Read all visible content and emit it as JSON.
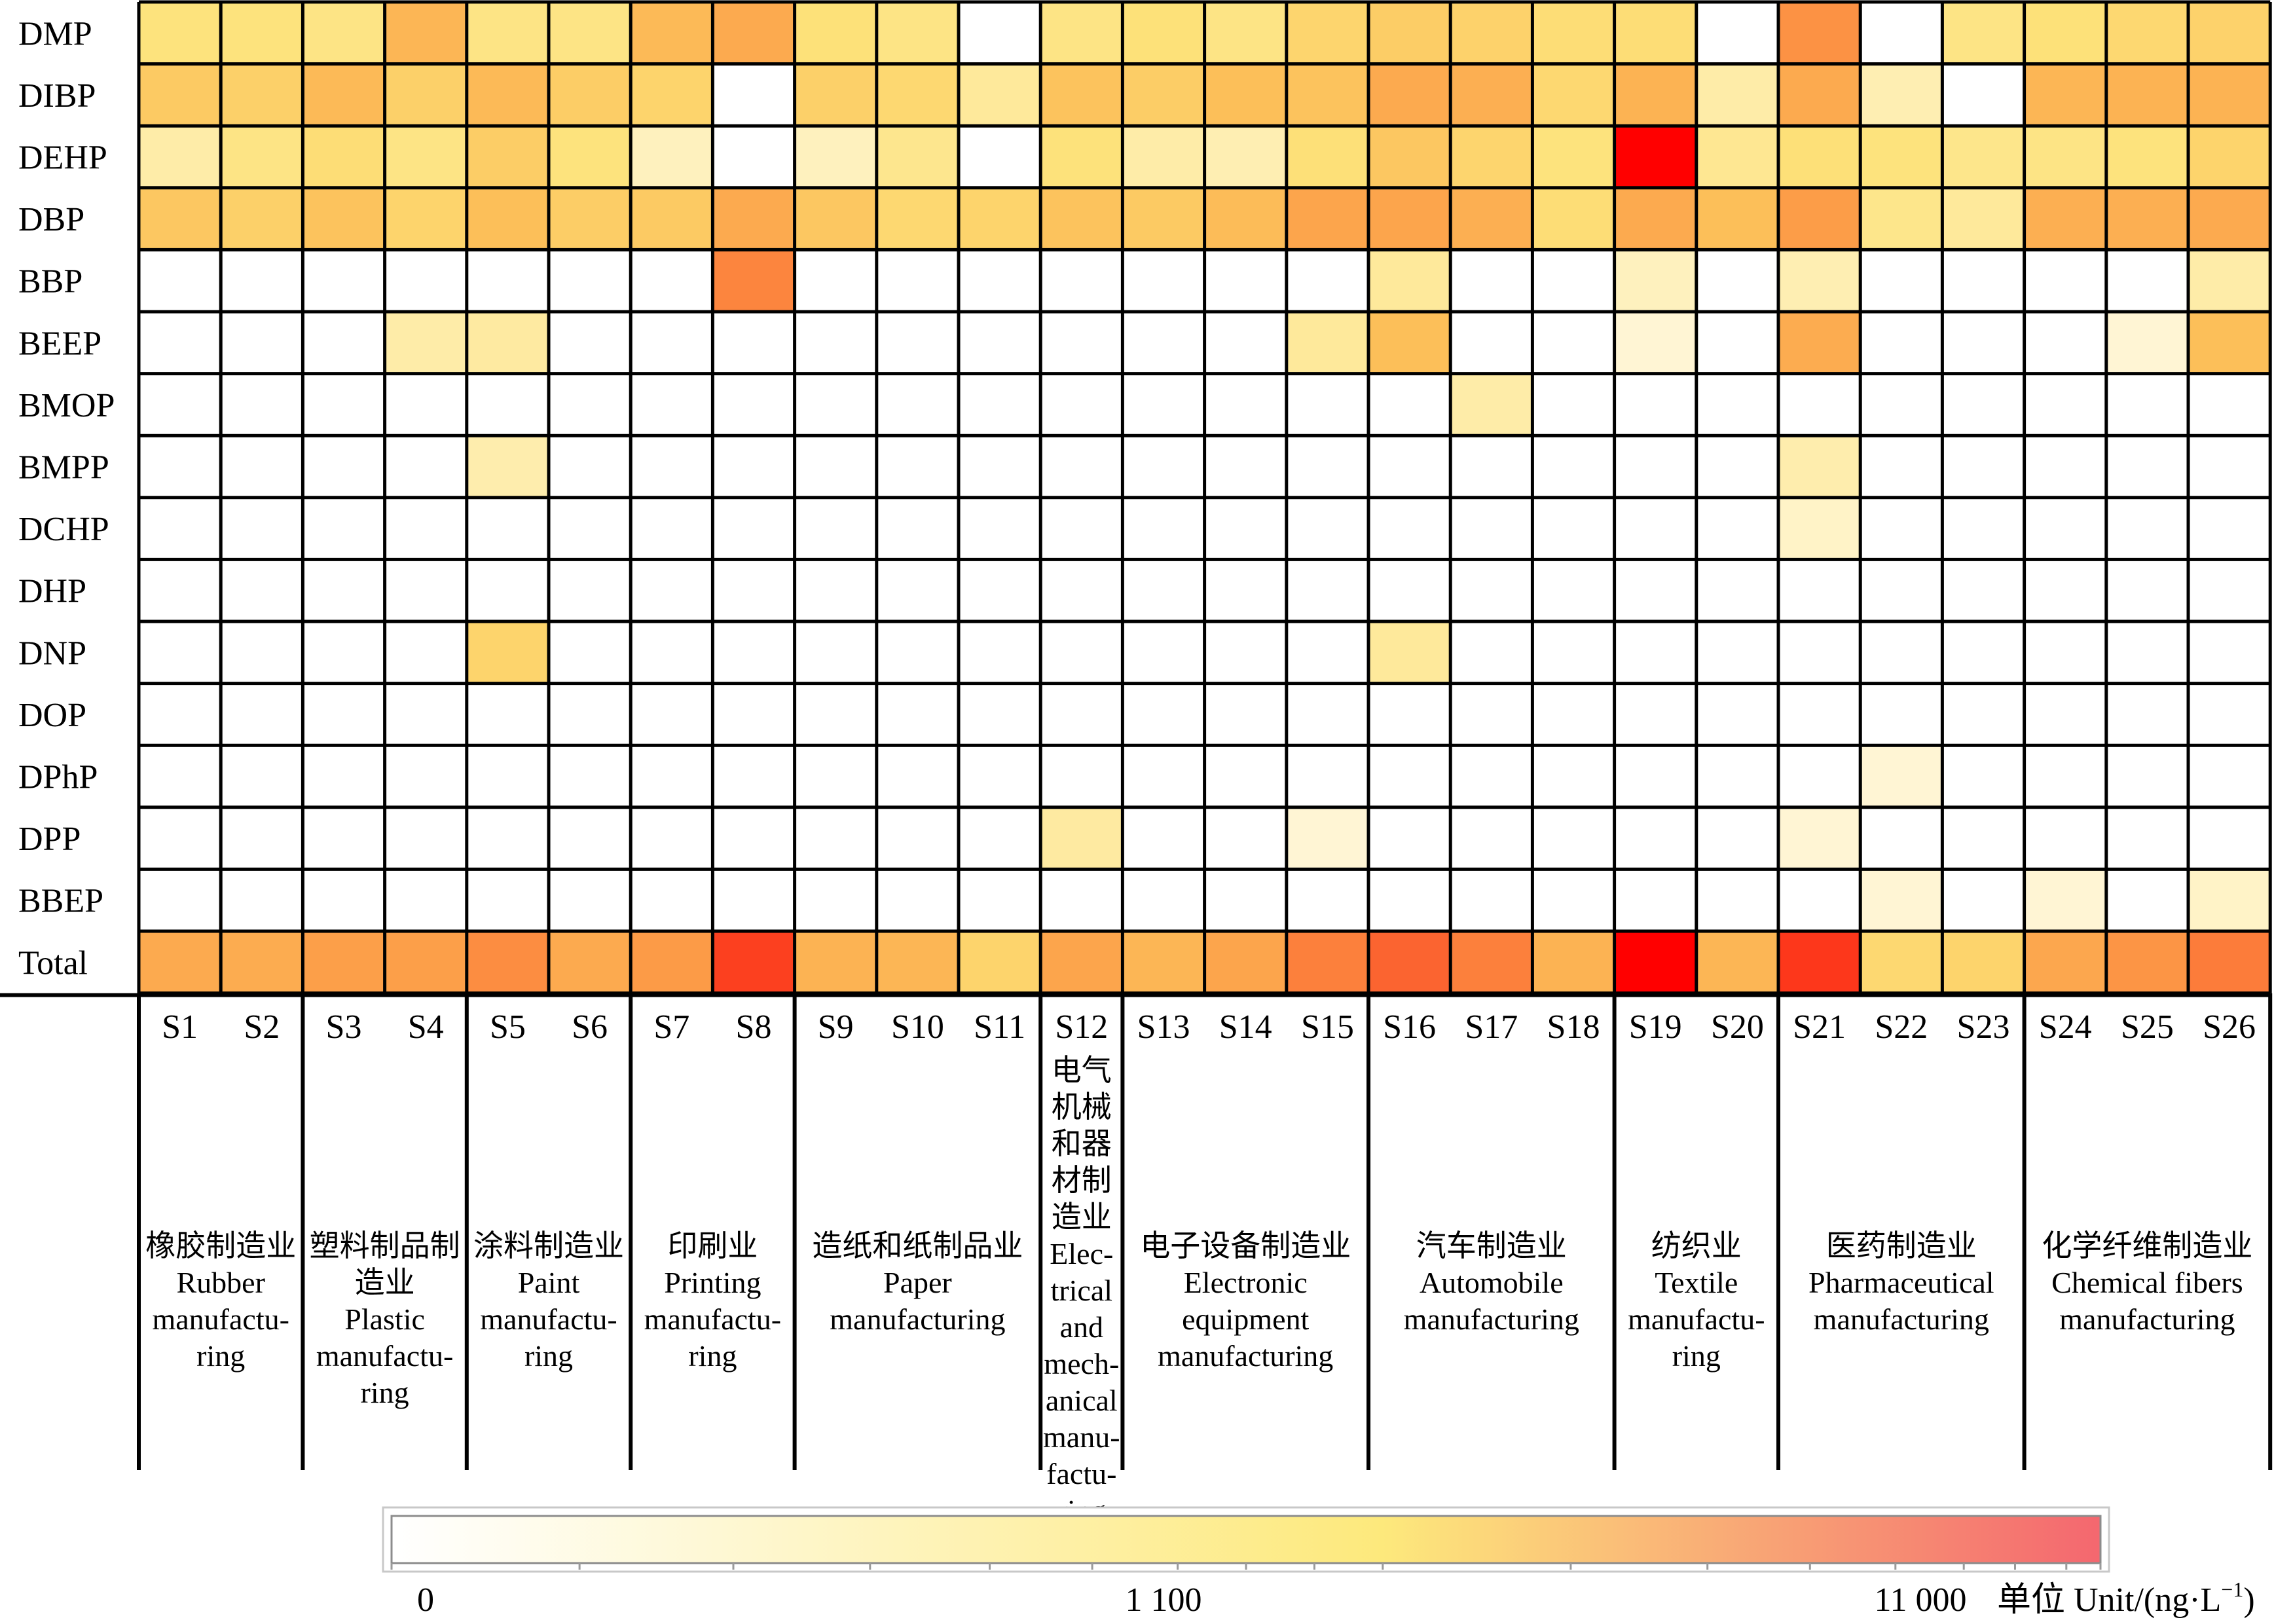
{
  "chart_data": {
    "type": "heatmap",
    "title": "",
    "rows": [
      "DMP",
      "DIBP",
      "DEHP",
      "DBP",
      "BBP",
      "BEEP",
      "BMOP",
      "BMPP",
      "DCHP",
      "DHP",
      "DNP",
      "DOP",
      "DPhP",
      "DPP",
      "BBEP",
      "Total"
    ],
    "sites": [
      "S1",
      "S2",
      "S3",
      "S4",
      "S5",
      "S6",
      "S7",
      "S8",
      "S9",
      "S10",
      "S11",
      "S12",
      "S13",
      "S14",
      "S15",
      "S16",
      "S17",
      "S18",
      "S19",
      "S20",
      "S21",
      "S22",
      "S23",
      "S24",
      "S25",
      "S26"
    ],
    "industries": [
      {
        "zh": "橡胶制造业",
        "en": "Rubber manufactu- ring",
        "sites": [
          "S1",
          "S2"
        ]
      },
      {
        "zh": "塑料制品制造业",
        "en": "Plastic manufactu- ring",
        "sites": [
          "S3",
          "S4"
        ]
      },
      {
        "zh": "涂料制造业",
        "en": "Paint manufactu- ring",
        "sites": [
          "S5",
          "S6"
        ]
      },
      {
        "zh": "印刷业",
        "en": "Printing manufactu- ring",
        "sites": [
          "S7",
          "S8"
        ]
      },
      {
        "zh": "造纸和纸制品业",
        "en": "Paper manufacturing",
        "sites": [
          "S9",
          "S10",
          "S11"
        ]
      },
      {
        "zh": "电气机械和器材制造业",
        "en": "Elec- trical and mech- anical manu- factu- ring",
        "sites": [
          "S12"
        ]
      },
      {
        "zh": "电子设备制造业",
        "en": "Electronic equipment manufacturing",
        "sites": [
          "S13",
          "S14",
          "S15"
        ]
      },
      {
        "zh": "汽车制造业",
        "en": "Automobile manufacturing",
        "sites": [
          "S16",
          "S17",
          "S18"
        ]
      },
      {
        "zh": "纺织业",
        "en": "Textile manufactu- ring",
        "sites": [
          "S19",
          "S20"
        ]
      },
      {
        "zh": "医药制造业",
        "en": "Pharmaceutical manufacturing",
        "sites": [
          "S21",
          "S22",
          "S23"
        ]
      },
      {
        "zh": "化学纤维制造业",
        "en": "Chemical fibers manufacturing",
        "sites": [
          "S24",
          "S25",
          "S26"
        ]
      }
    ],
    "values": [
      [
        150,
        150,
        120,
        900,
        120,
        120,
        800,
        1300,
        170,
        120,
        0,
        120,
        170,
        120,
        280,
        400,
        320,
        200,
        200,
        0,
        2300,
        0,
        120,
        170,
        250,
        320
      ],
      [
        450,
        350,
        800,
        350,
        800,
        400,
        300,
        0,
        350,
        250,
        60,
        600,
        400,
        700,
        600,
        1300,
        1100,
        250,
        1000,
        40,
        1300,
        30,
        0,
        900,
        1000,
        1000
      ],
      [
        40,
        120,
        200,
        120,
        400,
        150,
        20,
        0,
        20,
        90,
        0,
        160,
        40,
        30,
        180,
        500,
        280,
        150,
        11000,
        80,
        180,
        150,
        100,
        120,
        150,
        300
      ],
      [
        500,
        350,
        600,
        300,
        700,
        400,
        450,
        1300,
        500,
        250,
        300,
        600,
        450,
        750,
        1500,
        1500,
        1100,
        200,
        1300,
        700,
        1900,
        100,
        60,
        1100,
        1100,
        1300
      ],
      [
        0,
        0,
        0,
        0,
        0,
        0,
        0,
        2800,
        0,
        0,
        0,
        0,
        0,
        0,
        0,
        60,
        0,
        0,
        20,
        0,
        30,
        0,
        0,
        0,
        0,
        40
      ],
      [
        0,
        0,
        0,
        40,
        50,
        0,
        0,
        0,
        0,
        0,
        0,
        0,
        0,
        0,
        60,
        700,
        0,
        0,
        10,
        0,
        1200,
        0,
        0,
        0,
        10,
        700
      ],
      [
        0,
        0,
        0,
        0,
        0,
        0,
        0,
        0,
        0,
        0,
        0,
        0,
        0,
        0,
        0,
        0,
        40,
        0,
        0,
        0,
        0,
        0,
        0,
        0,
        0,
        0
      ],
      [
        0,
        0,
        0,
        0,
        35,
        0,
        0,
        0,
        0,
        0,
        0,
        0,
        0,
        0,
        0,
        0,
        0,
        0,
        0,
        0,
        35,
        0,
        0,
        0,
        0,
        0
      ],
      [
        0,
        0,
        0,
        0,
        0,
        0,
        0,
        0,
        0,
        0,
        0,
        0,
        0,
        0,
        0,
        0,
        0,
        0,
        0,
        0,
        15,
        0,
        0,
        0,
        0,
        0
      ],
      [
        0,
        0,
        0,
        0,
        0,
        0,
        0,
        0,
        0,
        0,
        0,
        0,
        0,
        0,
        0,
        0,
        0,
        0,
        0,
        0,
        0,
        0,
        0,
        0,
        0,
        0
      ],
      [
        0,
        0,
        0,
        0,
        300,
        0,
        0,
        0,
        0,
        0,
        0,
        0,
        0,
        0,
        0,
        60,
        0,
        0,
        0,
        0,
        0,
        0,
        0,
        0,
        0,
        0
      ],
      [
        0,
        0,
        0,
        0,
        0,
        0,
        0,
        0,
        0,
        0,
        0,
        0,
        0,
        0,
        0,
        0,
        0,
        0,
        0,
        0,
        0,
        0,
        0,
        0,
        0,
        0
      ],
      [
        0,
        0,
        0,
        0,
        0,
        0,
        0,
        0,
        0,
        0,
        0,
        0,
        0,
        0,
        0,
        0,
        0,
        0,
        0,
        0,
        0,
        10,
        0,
        0,
        0,
        0
      ],
      [
        0,
        0,
        0,
        0,
        0,
        0,
        0,
        0,
        0,
        0,
        0,
        50,
        0,
        0,
        10,
        0,
        0,
        0,
        0,
        0,
        10,
        0,
        0,
        0,
        0,
        0
      ],
      [
        0,
        0,
        0,
        0,
        0,
        0,
        0,
        0,
        0,
        0,
        0,
        0,
        0,
        0,
        0,
        0,
        0,
        0,
        0,
        0,
        0,
        10,
        0,
        10,
        0,
        15
      ],
      [
        1300,
        1200,
        1800,
        1800,
        2500,
        1300,
        2000,
        6500,
        1000,
        900,
        300,
        1500,
        900,
        1500,
        3000,
        4500,
        3000,
        1000,
        11000,
        900,
        7000,
        250,
        300,
        1400,
        2200,
        3200
      ]
    ],
    "colorbar": {
      "ticks": [
        "0",
        "1 100",
        "11 000"
      ],
      "tick_values": [
        0,
        1100,
        11000
      ],
      "scale": "log-like",
      "colors": [
        "#ffffff",
        "#fde97c",
        "#f4676f"
      ],
      "unit_label": "单位 Unit/(ng·L",
      "unit_superscript": "−1",
      "unit_close": ")"
    },
    "grid": true
  }
}
